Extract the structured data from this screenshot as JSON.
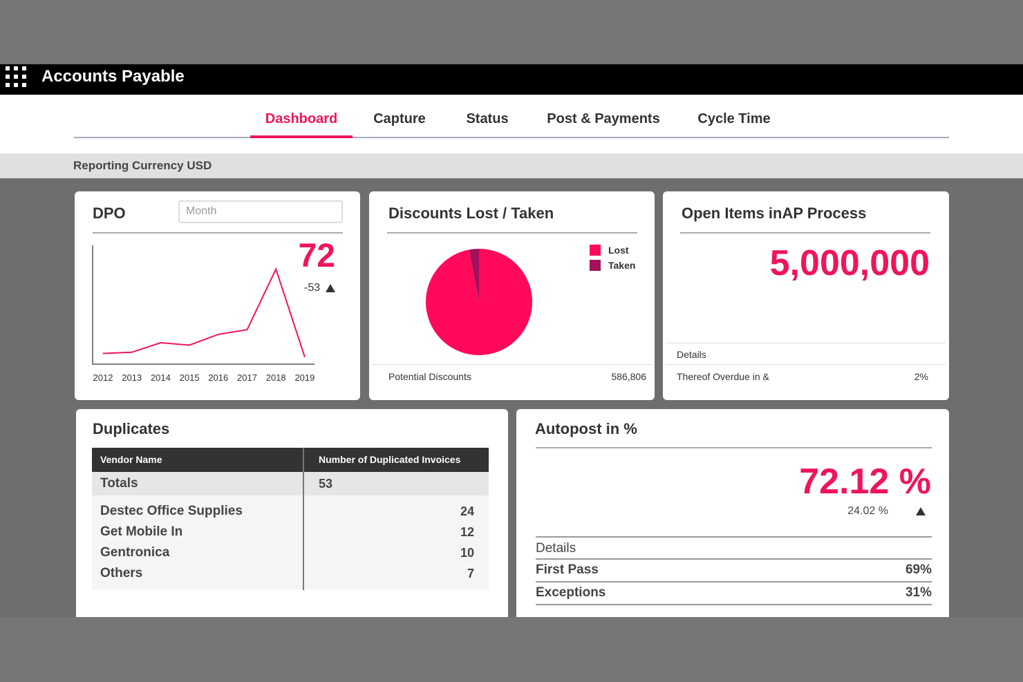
{
  "header": {
    "title": "Accounts Payable"
  },
  "nav": {
    "tabs": [
      "Dashboard",
      "Capture",
      "Status",
      "Post & Payments",
      "Cycle Time"
    ],
    "active": 0
  },
  "currency_bar": {
    "label": "Reporting Currency USD"
  },
  "dpo": {
    "title": "DPO",
    "filter_placeholder": "Month",
    "value": 72,
    "change": -53,
    "chart": {
      "type": "line",
      "categories": [
        "2012",
        "2013",
        "2014",
        "2015",
        "2016",
        "2017",
        "2018",
        "2019"
      ],
      "values": [
        9,
        10,
        18,
        16,
        25,
        29,
        80,
        6
      ],
      "ylim": [
        0,
        100
      ],
      "color": "#f0145a"
    }
  },
  "discounts": {
    "title": "Discounts Lost / Taken",
    "chart": {
      "type": "pie",
      "series": [
        {
          "name": "Lost",
          "color": "#ff0a5a",
          "value": 97
        },
        {
          "name": "Taken",
          "color": "#a3105c",
          "value": 3
        }
      ]
    },
    "footer": {
      "label": "Potential Discounts",
      "value": "586,806"
    }
  },
  "open_items": {
    "title": "Open Items inAP Process",
    "value": "5,000,000",
    "details": "Details",
    "row": {
      "label": "Thereof Overdue in &",
      "value": "2%"
    }
  },
  "duplicates": {
    "title": "Duplicates",
    "columns": [
      "Vendor Name",
      "Number of Duplicated Invoices"
    ],
    "totals": [
      "Totals",
      53
    ],
    "rows": [
      [
        "Destec Office Supplies",
        24
      ],
      [
        "Get Mobile In",
        12
      ],
      [
        "Gentronica",
        10
      ],
      [
        "Others",
        7
      ]
    ]
  },
  "autopost": {
    "title": "Autopost in %",
    "value": "72.12 %",
    "change": "24.02 %",
    "details": "Details",
    "rows": [
      [
        "First Pass",
        "69%"
      ],
      [
        "Exceptions",
        "31%"
      ]
    ]
  }
}
